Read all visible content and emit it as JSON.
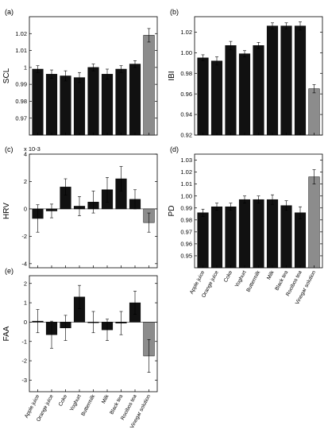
{
  "categories": [
    "Apple juice",
    "Orange juice",
    "Coke",
    "Yoghurt",
    "Buttermilk",
    "Milk",
    "Black tea",
    "Rooibos tea",
    "Vinegar solution"
  ],
  "colors": {
    "bar": "#111111",
    "control": "#8c8c8c",
    "axis": "#000000"
  },
  "chart_data": [
    {
      "type": "bar",
      "panel_label": "(a)",
      "ylabel": "SCL",
      "ylim": [
        0.96,
        1.03
      ],
      "yticks": [
        0.97,
        0.98,
        0.99,
        1,
        1.01,
        1.02
      ],
      "ytick_labels": [
        "0.97",
        "0.98",
        "0.99",
        "1",
        "1.01",
        "1.02"
      ],
      "y_exponent": "",
      "categories": [
        "Apple juice",
        "Orange juice",
        "Coke",
        "Yoghurt",
        "Buttermilk",
        "Milk",
        "Black tea",
        "Rooibos tea",
        "Vinegar solution"
      ],
      "values": [
        0.999,
        0.996,
        0.995,
        0.994,
        1.0,
        0.996,
        0.999,
        1.002,
        1.019
      ],
      "errors": [
        0.002,
        0.0025,
        0.003,
        0.003,
        0.002,
        0.003,
        0.002,
        0.002,
        0.004
      ],
      "show_category_labels": false
    },
    {
      "type": "bar",
      "panel_label": "(b)",
      "ylabel": "IBI",
      "ylim": [
        0.92,
        1.035
      ],
      "yticks": [
        0.92,
        0.94,
        0.96,
        0.98,
        1.0,
        1.02
      ],
      "ytick_labels": [
        "0.92",
        "0.94",
        "0.96",
        "0.98",
        "1.00",
        "1.02"
      ],
      "y_exponent": "",
      "categories": [
        "Apple juice",
        "Orange juice",
        "Coke",
        "Yoghurt",
        "Buttermilk",
        "Milk",
        "Black tea",
        "Rooibos tea",
        "Vinegar solution"
      ],
      "values": [
        0.995,
        0.992,
        1.007,
        0.999,
        1.007,
        1.026,
        1.026,
        1.026,
        0.965
      ],
      "errors": [
        0.003,
        0.004,
        0.004,
        0.003,
        0.003,
        0.003,
        0.003,
        0.004,
        0.004
      ],
      "show_category_labels": false
    },
    {
      "type": "bar",
      "panel_label": "(c)",
      "ylabel": "HRV",
      "ylim": [
        -4.3,
        4
      ],
      "yticks": [
        -4,
        -2,
        0,
        2,
        4
      ],
      "ytick_labels": [
        "-4",
        "-2",
        "0",
        "2",
        "4"
      ],
      "y_exponent": "x 10-3",
      "categories": [
        "Apple juice",
        "Orange juice",
        "Coke",
        "Yoghurt",
        "Buttermilk",
        "Milk",
        "Black tea",
        "Rooibos tea",
        "Vinegar solution"
      ],
      "values": [
        -0.7,
        -0.15,
        1.6,
        0.2,
        0.5,
        1.4,
        2.2,
        0.7,
        -1.0
      ],
      "errors": [
        1.0,
        0.5,
        0.6,
        0.7,
        0.8,
        0.9,
        0.9,
        0.7,
        0.7
      ],
      "show_category_labels": false
    },
    {
      "type": "bar",
      "panel_label": "(d)",
      "ylabel": "PD",
      "ylim": [
        0.94,
        1.035
      ],
      "yticks": [
        0.95,
        0.96,
        0.97,
        0.98,
        0.99,
        1.0,
        1.01,
        1.02,
        1.03
      ],
      "ytick_labels": [
        "0.95",
        "0.96",
        "0.97",
        "0.98",
        "0.99",
        "1.00",
        "1.01",
        "1.02",
        "1.03"
      ],
      "y_exponent": "",
      "categories": [
        "Apple juice",
        "Orange juice",
        "Coke",
        "Yoghurt",
        "Buttermilk",
        "Milk",
        "Black tea",
        "Rooibos tea",
        "Vinegar solution"
      ],
      "values": [
        0.986,
        0.991,
        0.991,
        0.997,
        0.997,
        0.997,
        0.992,
        0.986,
        1.016
      ],
      "errors": [
        0.003,
        0.003,
        0.003,
        0.003,
        0.003,
        0.004,
        0.004,
        0.005,
        0.006
      ],
      "show_category_labels": true
    },
    {
      "type": "bar",
      "panel_label": "(e)",
      "ylabel": "FAA",
      "ylim": [
        -3.6,
        2.4
      ],
      "yticks": [
        -3,
        -2,
        -1,
        0,
        1,
        2
      ],
      "ytick_labels": [
        "-3",
        "-2",
        "-1",
        "0",
        "1",
        "2"
      ],
      "y_exponent": "",
      "categories": [
        "Apple juice",
        "Orange juice",
        "Coke",
        "Yoghurt",
        "Buttermilk",
        "Milk",
        "Black tea",
        "Rooibos tea",
        "Vinegar solution"
      ],
      "values": [
        0.05,
        -0.65,
        -0.3,
        1.3,
        0.0,
        -0.4,
        -0.05,
        1.0,
        -1.75
      ],
      "errors": [
        0.6,
        0.7,
        0.65,
        0.6,
        0.55,
        0.55,
        0.6,
        0.6,
        0.85
      ],
      "show_category_labels": true
    }
  ]
}
